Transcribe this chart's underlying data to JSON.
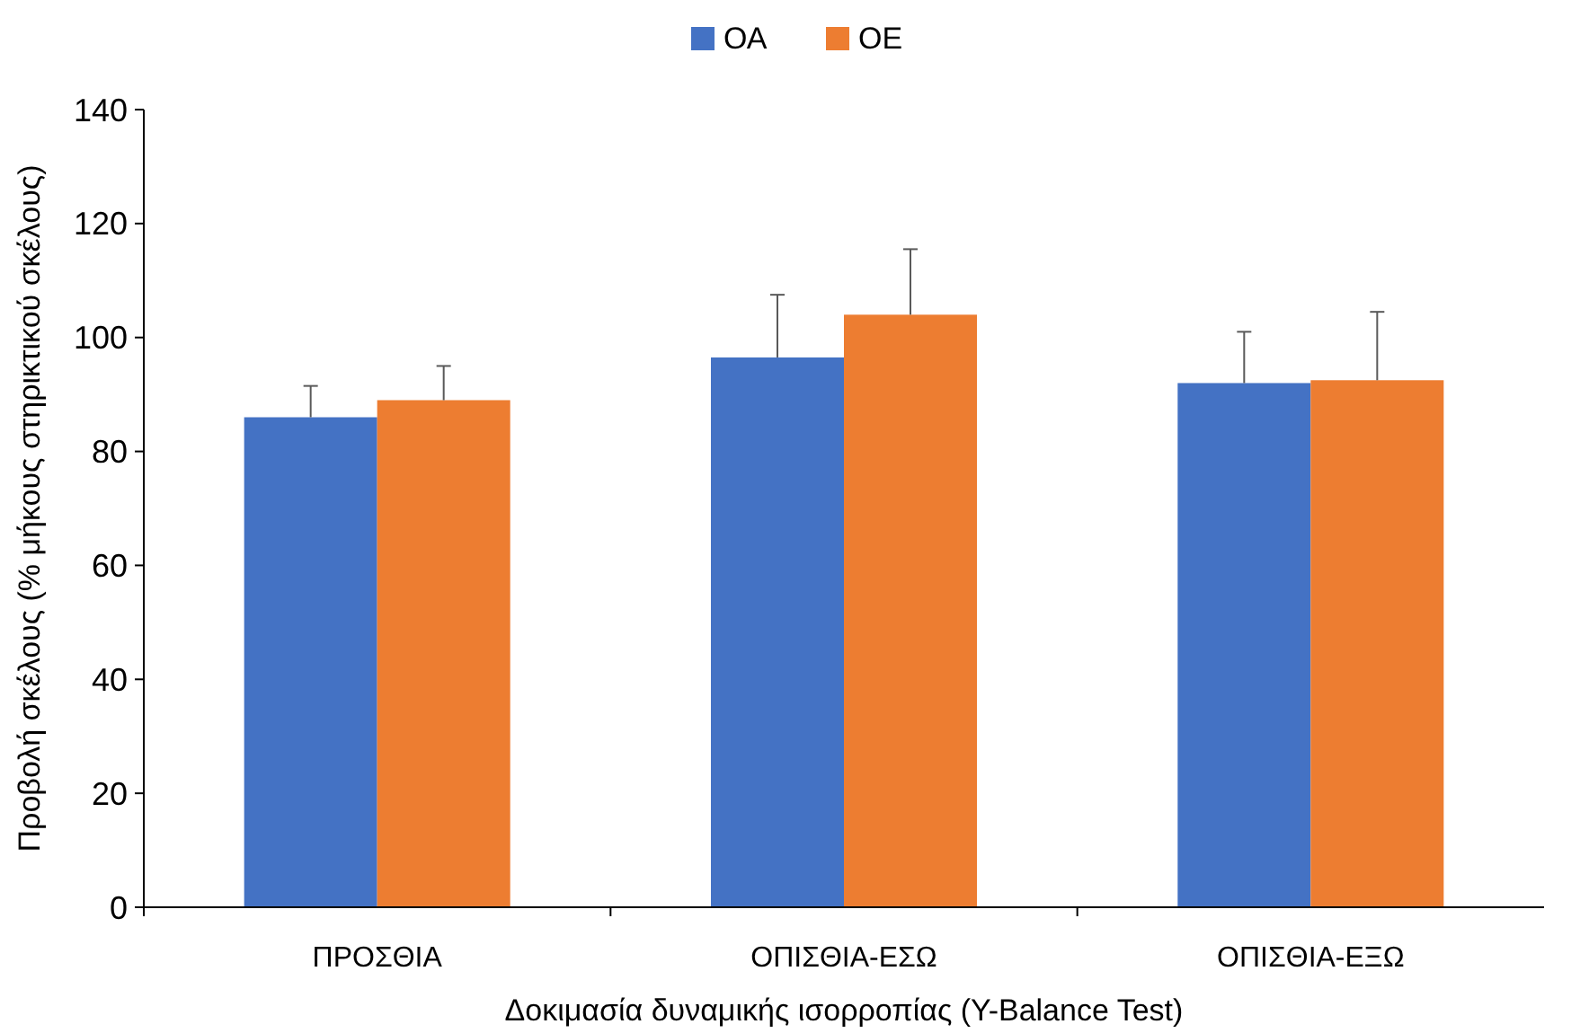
{
  "chart_data": {
    "type": "bar",
    "xlabel": "Δοκιμασία δυναμικής ισορροπίας (Y-Balance Test)",
    "ylabel": "Προβολή σκέλους (% μήκους στηρικτικού σκέλους)",
    "categories": [
      "ΠΡΟΣΘΙΑ",
      "ΟΠΙΣΘΙΑ-ΕΣΩ",
      "ΟΠΙΣΘΙΑ-ΕΞΩ"
    ],
    "series": [
      {
        "name": "ΟΑ",
        "color": "#4472c4",
        "values": [
          86,
          96.5,
          92
        ],
        "errors": [
          [
            86,
            91.5
          ],
          [
            96.5,
            107.5
          ],
          [
            92,
            101
          ]
        ]
      },
      {
        "name": "ΟΕ",
        "color": "#ed7d31",
        "values": [
          89,
          104,
          92.5
        ],
        "errors": [
          [
            89,
            95
          ],
          [
            104,
            115.5
          ],
          [
            92.5,
            104.5
          ]
        ]
      }
    ],
    "ylim": [
      0,
      140
    ],
    "yticks": [
      0,
      20,
      40,
      60,
      80,
      100,
      120,
      140
    ],
    "grid": false,
    "legend": "top"
  }
}
